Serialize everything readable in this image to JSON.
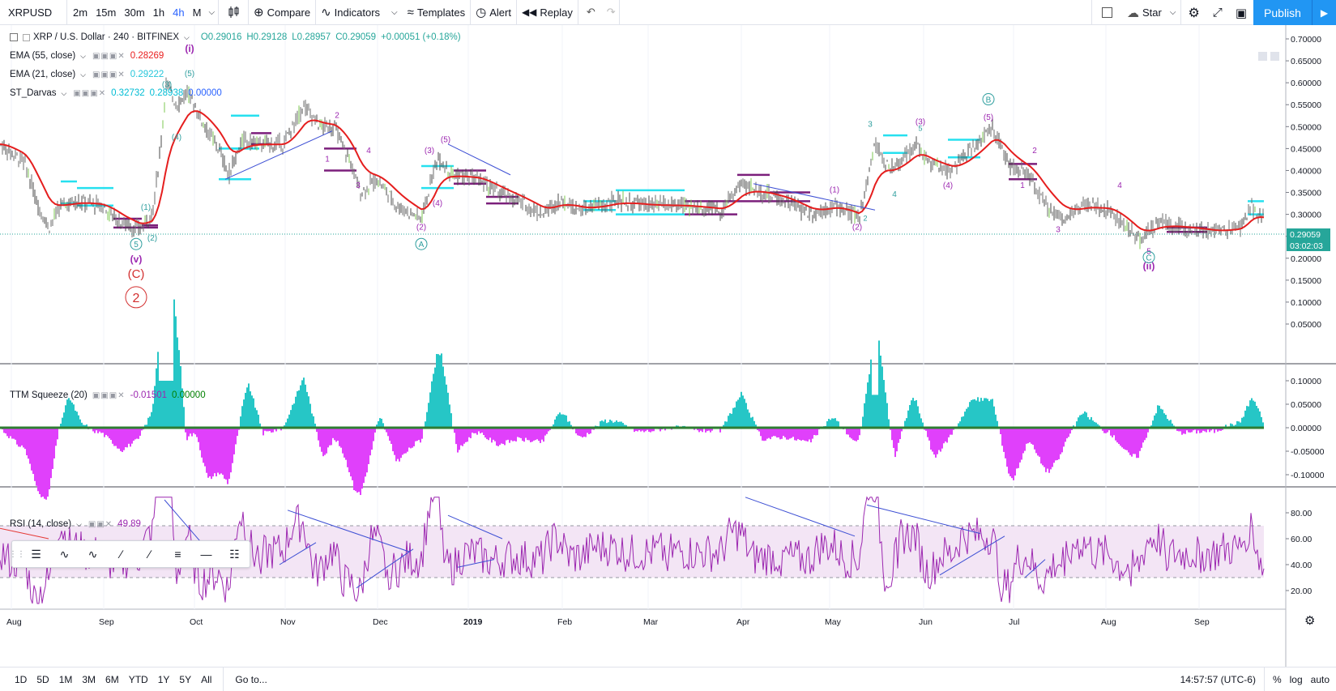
{
  "toolbar": {
    "symbol": "XRPUSD",
    "timeframes": [
      "2m",
      "15m",
      "30m",
      "1h",
      "4h",
      "M"
    ],
    "active_timeframe": "4h",
    "compare": "Compare",
    "indicators": "Indicators",
    "templates": "Templates",
    "alert": "Alert",
    "replay": "Replay",
    "star": "Star",
    "publish": "Publish"
  },
  "main_legend": {
    "title": "XRP / U.S. Dollar · 240 · BITFINEX",
    "open": "O0.29016",
    "high": "H0.29128",
    "low": "L0.28957",
    "close": "C0.29059",
    "change": "+0.00051 (+0.18%)"
  },
  "indicators": [
    {
      "name": "EMA (55, close)",
      "values": [
        "0.28269"
      ],
      "colors": [
        "#e91e1e"
      ]
    },
    {
      "name": "EMA (21, close)",
      "values": [
        "0.29222"
      ],
      "colors": [
        "#26c6da"
      ]
    },
    {
      "name": "ST_Darvas",
      "values": [
        "0.32732",
        "0.28938",
        "0.00000"
      ],
      "colors": [
        "#00bcd4",
        "#00bcd4",
        "#2962ff"
      ]
    }
  ],
  "ttm_legend": {
    "name": "TTM Squeeze (20)",
    "values": [
      "-0.01501",
      "0.00000"
    ],
    "colors": [
      "#9c27b0",
      "#008000"
    ]
  },
  "rsi_legend": {
    "name": "RSI (14, close)",
    "values": [
      "49.89"
    ],
    "colors": [
      "#9c27b0"
    ]
  },
  "price_axis": {
    "ticks": [
      "0.70000",
      "0.65000",
      "0.60000",
      "0.55000",
      "0.50000",
      "0.45000",
      "0.40000",
      "0.35000",
      "0.30000",
      "0.25000",
      "0.20000",
      "0.15000",
      "0.10000",
      "0.05000"
    ],
    "last_price": "0.29059",
    "countdown": "03:02:03"
  },
  "ttm_axis": {
    "ticks": [
      "0.10000",
      "0.05000",
      "0.00000",
      "-0.05000",
      "-0.10000"
    ]
  },
  "rsi_axis": {
    "ticks": [
      "80.00",
      "60.00",
      "40.00",
      "20.00"
    ]
  },
  "time_axis": {
    "labels": [
      "Aug",
      "Sep",
      "Oct",
      "Nov",
      "Dec",
      "2019",
      "Feb",
      "Mar",
      "Apr",
      "May",
      "Jun",
      "Jul",
      "Aug",
      "Sep"
    ]
  },
  "wave_labels": {
    "i": "(i)",
    "five_top": "(5)",
    "three": "(3)",
    "four_a": "(4)",
    "one": "(1)",
    "two": "(2)",
    "five_circ": "5",
    "v": "(v)",
    "C": "(C)",
    "two_circ": "2",
    "b2": "2",
    "b1": "1",
    "b3": "3",
    "b4": "4",
    "dec5": "(5)",
    "dec3": "(3)",
    "dec4": "(4)",
    "dec2": "(2)",
    "decA": "A",
    "dec5b": "5",
    "may1": "(1)",
    "may2": "(2)",
    "may2b": "2",
    "may1b": "1",
    "jun3": "3",
    "jun4": "4",
    "jun3b": "(3)",
    "jun5": "5",
    "jun4b": "(4)",
    "junB": "B",
    "jun5b": "(5)",
    "jul2": "2",
    "jul1": "1",
    "jul3": "3",
    "aug4": "4",
    "aug5": "5",
    "augC": "C",
    "ii": "(ii)"
  },
  "bottom": {
    "ranges": [
      "1D",
      "5D",
      "1M",
      "3M",
      "6M",
      "YTD",
      "1Y",
      "5Y",
      "All"
    ],
    "goto": "Go to...",
    "clock": "14:57:57 (UTC-6)",
    "pct": "%",
    "log": "log",
    "auto": "auto"
  },
  "chart_data": {
    "type": "line",
    "title": "XRP / U.S. Dollar · 240 · BITFINEX",
    "x": [
      "Aug",
      "Sep",
      "Oct",
      "Nov",
      "Dec",
      "2019",
      "Feb",
      "Mar",
      "Apr",
      "May",
      "Jun",
      "Jul",
      "Aug",
      "Sep"
    ],
    "series": [
      {
        "name": "EMA (55, close)",
        "values": [
          0.33,
          0.28,
          0.52,
          0.46,
          0.31,
          0.37,
          0.31,
          0.32,
          0.34,
          0.31,
          0.42,
          0.4,
          0.3,
          0.27
        ]
      }
    ],
    "ylim": [
      0.03,
      0.72
    ],
    "rsi_ylim": [
      0,
      100
    ],
    "rsi_levels": [
      30,
      70
    ]
  }
}
